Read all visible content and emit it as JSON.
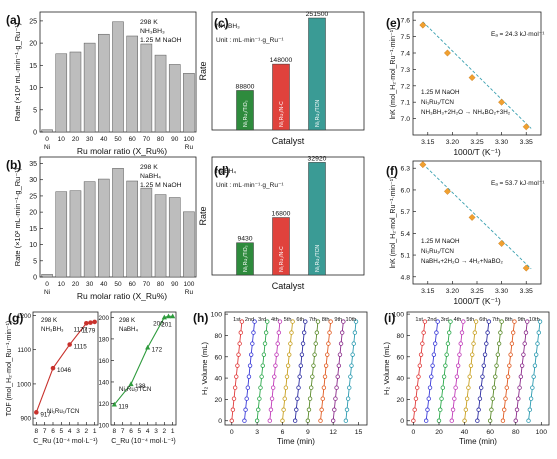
{
  "chart_data": [
    {
      "panel": "(a)",
      "type": "bar",
      "ylabel": "Rate (×10³ mL·min⁻¹·g_Ru⁻¹)",
      "xlabel": "Ru molar ratio (X_Ru%)",
      "categories": [
        "0",
        "10",
        "20",
        "30",
        "40",
        "50",
        "60",
        "70",
        "80",
        "90",
        "100"
      ],
      "tick_labels": [
        "0",
        "10",
        "20",
        "30",
        "40",
        "50",
        "60",
        "70",
        "80",
        "90",
        "100"
      ],
      "sub_labels": [
        "Ni",
        "",
        "",
        "",
        "",
        "",
        "",
        "",
        "",
        "",
        "Ru"
      ],
      "values": [
        0.5,
        17.6,
        18.0,
        20.0,
        22.0,
        24.8,
        21.6,
        19.8,
        17.3,
        15.2,
        13.2
      ],
      "ylim": [
        0,
        27
      ],
      "yticks": [
        0,
        5,
        10,
        15,
        20,
        25
      ],
      "annotations": [
        "298 K",
        "NH₃BH₃",
        "1.25 M NaOH"
      ]
    },
    {
      "panel": "(b)",
      "type": "bar",
      "ylabel": "Rate (×10² mL·min⁻¹·g_Ru⁻¹)",
      "xlabel": "Ru molar ratio (X_Ru%)",
      "categories": [
        "0",
        "10",
        "20",
        "30",
        "40",
        "50",
        "60",
        "70",
        "80",
        "90",
        "100"
      ],
      "tick_labels": [
        "0",
        "10",
        "20",
        "30",
        "40",
        "50",
        "60",
        "70",
        "80",
        "90",
        "100"
      ],
      "sub_labels": [
        "Ni",
        "",
        "",
        "",
        "",
        "",
        "",
        "",
        "",
        "",
        "Ru"
      ],
      "values": [
        0.8,
        26.3,
        26.6,
        29.4,
        30.2,
        33.5,
        29.6,
        27.4,
        25.4,
        24.5,
        20.1
      ],
      "ylim": [
        0,
        37
      ],
      "yticks": [
        0,
        5,
        10,
        15,
        20,
        25,
        30,
        35
      ],
      "annotations": [
        "298 K",
        "NaBH₄",
        "1.25 M NaOH"
      ]
    },
    {
      "panel": "(c)",
      "type": "bar",
      "ylabel": "Rate",
      "xlabel": "Catalyst",
      "categories": [
        "Ni₁Ru₁/TiO₂",
        "Ni₁Ru₁/N-C",
        "Ni₁Ru₁/TCN"
      ],
      "values": [
        88800,
        148000,
        251500
      ],
      "value_labels": [
        "88800",
        "148000",
        "251500"
      ],
      "colors": [
        "#2e8b3d",
        "#e0423c",
        "#3a9b95"
      ],
      "ylim": [
        0,
        265000
      ],
      "annotations": [
        "NH₃BH₃",
        "Unit : mL·min⁻¹·g_Ru⁻¹"
      ]
    },
    {
      "panel": "(d)",
      "type": "bar",
      "ylabel": "Rate",
      "xlabel": "Catalyst",
      "categories": [
        "Ni₁Ru₁/TiO₂",
        "Ni₁Ru₁/N-C",
        "Ni₁Ru₁/TCN"
      ],
      "values": [
        9430,
        16800,
        32920
      ],
      "value_labels": [
        "9430",
        "16800",
        "32920"
      ],
      "colors": [
        "#2e8b3d",
        "#e0423c",
        "#3a9b95"
      ],
      "ylim": [
        0,
        34500
      ],
      "annotations": [
        "NaBH₄",
        "Unit : mL·min⁻¹·g_Ru⁻¹"
      ]
    },
    {
      "panel": "(e)",
      "type": "scatter",
      "ylabel": "lnK (mol_H₂·mol_Ru⁻¹·min⁻¹)",
      "xlabel": "1000/T (K⁻¹)",
      "x": [
        3.14,
        3.19,
        3.24,
        3.3,
        3.35
      ],
      "y": [
        7.57,
        7.4,
        7.25,
        7.1,
        6.95
      ],
      "fit_line": {
        "x": [
          3.14,
          3.36
        ],
        "y": [
          7.59,
          6.94
        ]
      },
      "xlim": [
        3.12,
        3.38
      ],
      "ylim": [
        6.9,
        7.65
      ],
      "xticks": [
        3.15,
        3.2,
        3.25,
        3.3,
        3.35
      ],
      "yticks": [
        7.0,
        7.1,
        7.2,
        7.3,
        7.4,
        7.5,
        7.6
      ],
      "annotations": [
        "Eₐ = 24.3 kJ·mol⁻¹",
        "1.25 M NaOH",
        "Ni₁Ru₁/TCN",
        "NH₃BH₃+2H₂O → NH₄BO₂+3H₂"
      ]
    },
    {
      "panel": "(f)",
      "type": "scatter",
      "ylabel": "lnK (mol_H₂·mol_Ru⁻¹·min⁻¹)",
      "xlabel": "1000/T (K⁻¹)",
      "x": [
        3.14,
        3.19,
        3.24,
        3.3,
        3.35
      ],
      "y": [
        6.35,
        5.98,
        5.62,
        5.26,
        4.92
      ],
      "fit_line": {
        "x": [
          3.14,
          3.36
        ],
        "y": [
          6.36,
          4.91
        ]
      },
      "xlim": [
        3.12,
        3.38
      ],
      "ylim": [
        4.7,
        6.4
      ],
      "xticks": [
        3.15,
        3.2,
        3.25,
        3.3,
        3.35
      ],
      "yticks": [
        4.8,
        5.1,
        5.4,
        5.7,
        6.0,
        6.3
      ],
      "annotations": [
        "Eₐ = 53.7 kJ·mol⁻¹",
        "1.25 M NaOH",
        "Ni₁Ru₁/TCN",
        "NaBH₄+2H₂O → 4H₂+NaBO₂"
      ]
    },
    {
      "panel": "(g)",
      "type": "line",
      "ylabel": "TOF (mol_H₂·mol_Ru⁻¹·min⁻¹)",
      "subplots": [
        {
          "xlabel": "C_Ru (10⁻⁴ mol·L⁻¹)",
          "x": [
            8,
            6,
            4,
            2,
            1.5,
            1
          ],
          "y": [
            917,
            1046,
            1115,
            1177,
            1179,
            1181
          ],
          "point_labels": [
            "917",
            "1046",
            "1115",
            "1177",
            "1179",
            ""
          ],
          "xticks": [
            8,
            7,
            6,
            5,
            4,
            3,
            2,
            1
          ],
          "yticks": [
            900,
            1000,
            1100,
            1200
          ],
          "ylim": [
            880,
            1210
          ],
          "color": "#c8312c",
          "annotations": [
            "298 K",
            "NH₃BH₃",
            "Ni₁Ru₁/TCN"
          ]
        },
        {
          "xlabel": "C_Ru (10⁻⁴ mol·L⁻¹)",
          "x": [
            8,
            6,
            4,
            2,
            1.5,
            1
          ],
          "y": [
            119,
            138,
            172,
            200,
            201,
            201
          ],
          "point_labels": [
            "119",
            "138",
            "172",
            "200",
            "201",
            ""
          ],
          "xticks": [
            8,
            7,
            6,
            5,
            4,
            3,
            2,
            1
          ],
          "yticks": [
            100,
            120,
            140,
            160,
            180,
            200
          ],
          "ylim": [
            100,
            205
          ],
          "color": "#2e9b3d",
          "annotations": [
            "298 K",
            "NaBH₄",
            "Ni₁Ru₁/TCN"
          ]
        }
      ]
    },
    {
      "panel": "(h)",
      "type": "line",
      "ylabel": "H₂ Volume (mL)",
      "xlabel": "Time (min)",
      "series_labels": [
        "1st",
        "2nd",
        "3rd",
        "4th",
        "5th",
        "6th",
        "7th",
        "8th",
        "9th",
        "10th"
      ],
      "cycle_start": [
        0,
        1.5,
        3,
        4.5,
        6,
        7.5,
        9,
        10.5,
        12,
        13.5
      ],
      "cycle_duration": 1.2,
      "y_max": 93,
      "xlim": [
        -0.8,
        16
      ],
      "ylim": [
        -4,
        102
      ],
      "xticks": [
        0,
        3,
        6,
        9,
        12,
        15
      ],
      "yticks": [
        0,
        20,
        40,
        60,
        80,
        100
      ],
      "colors": [
        "#e03a3a",
        "#3a3ad8",
        "#2aa84a",
        "#c03ab8",
        "#c8a020",
        "#2a2aa0",
        "#5a8a2a",
        "#e05a20",
        "#8a2a8a",
        "#2a9ab0"
      ]
    },
    {
      "panel": "(i)",
      "type": "line",
      "ylabel": "H₂ Volume (mL)",
      "xlabel": "Time (min)",
      "series_labels": [
        "1st",
        "2nd",
        "3rd",
        "4th",
        "5th",
        "6th",
        "7th",
        "8th",
        "9th",
        "10th"
      ],
      "cycle_start": [
        0,
        10,
        20,
        30,
        40,
        50,
        60,
        70,
        80,
        90
      ],
      "cycle_duration": 9,
      "y_max": 93,
      "xlim": [
        -5,
        106
      ],
      "ylim": [
        -4,
        102
      ],
      "xticks": [
        0,
        20,
        40,
        60,
        80,
        100
      ],
      "yticks": [
        0,
        20,
        40,
        60,
        80,
        100
      ],
      "colors": [
        "#e03a3a",
        "#3a3ad8",
        "#2aa84a",
        "#c03ab8",
        "#c8a020",
        "#2a2aa0",
        "#5a8a2a",
        "#e05a20",
        "#8a2a8a",
        "#2a9ab0"
      ]
    }
  ]
}
